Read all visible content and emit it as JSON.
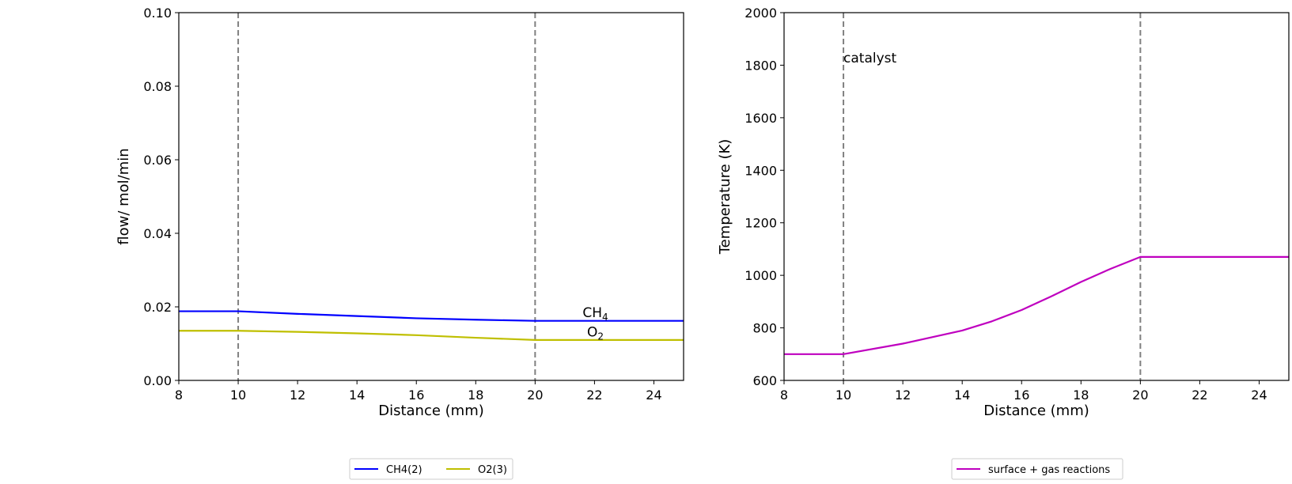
{
  "chart_data": [
    {
      "type": "line",
      "title": "",
      "xlabel": "Distance (mm)",
      "ylabel": "flow/ mol/min",
      "xlim": [
        8,
        25
      ],
      "ylim": [
        0,
        0.1
      ],
      "xticks": [
        "8",
        "10",
        "12",
        "14",
        "16",
        "18",
        "20",
        "22",
        "24"
      ],
      "yticks": [
        "0.00",
        "0.02",
        "0.04",
        "0.06",
        "0.08",
        "0.10"
      ],
      "grid": false,
      "legend_position": "below",
      "vlines": [
        10,
        20
      ],
      "annotations": [
        {
          "base": "CH",
          "sub": "4",
          "x": 21.6,
          "y": 0.0172
        },
        {
          "base": "O",
          "sub": "2",
          "x": 21.75,
          "y": 0.0119
        }
      ],
      "series": [
        {
          "name": "CH4(2)",
          "color": "#0000ff",
          "x": [
            8,
            10,
            12,
            14,
            16,
            18,
            20,
            22,
            25
          ],
          "y": [
            0.0188,
            0.0188,
            0.0181,
            0.0175,
            0.0169,
            0.0165,
            0.0162,
            0.0162,
            0.0162
          ]
        },
        {
          "name": "O2(3)",
          "color": "#bfbf00",
          "x": [
            8,
            10,
            12,
            14,
            16,
            18,
            20,
            22,
            25
          ],
          "y": [
            0.0135,
            0.0135,
            0.0132,
            0.0128,
            0.0123,
            0.0116,
            0.011,
            0.011,
            0.011
          ]
        }
      ]
    },
    {
      "type": "line",
      "title": "",
      "xlabel": "Distance (mm)",
      "ylabel": "Temperature (K)",
      "xlim": [
        8,
        25
      ],
      "ylim": [
        600,
        2000
      ],
      "xticks": [
        "8",
        "10",
        "12",
        "14",
        "16",
        "18",
        "20",
        "22",
        "24"
      ],
      "yticks": [
        "600",
        "800",
        "1000",
        "1200",
        "1400",
        "1600",
        "1800",
        "2000"
      ],
      "grid": false,
      "legend_position": "below",
      "vlines": [
        10,
        20
      ],
      "annotations": [
        {
          "text": "catalyst",
          "x": 10,
          "y": 1810
        }
      ],
      "series": [
        {
          "name": "surface + gas reactions",
          "color": "#bf00bf",
          "x": [
            8,
            10,
            12,
            14,
            15,
            16,
            17,
            18,
            19,
            20,
            22,
            25
          ],
          "y": [
            700,
            700,
            740,
            790,
            825,
            868,
            920,
            975,
            1025,
            1070,
            1070,
            1070
          ]
        }
      ]
    }
  ]
}
